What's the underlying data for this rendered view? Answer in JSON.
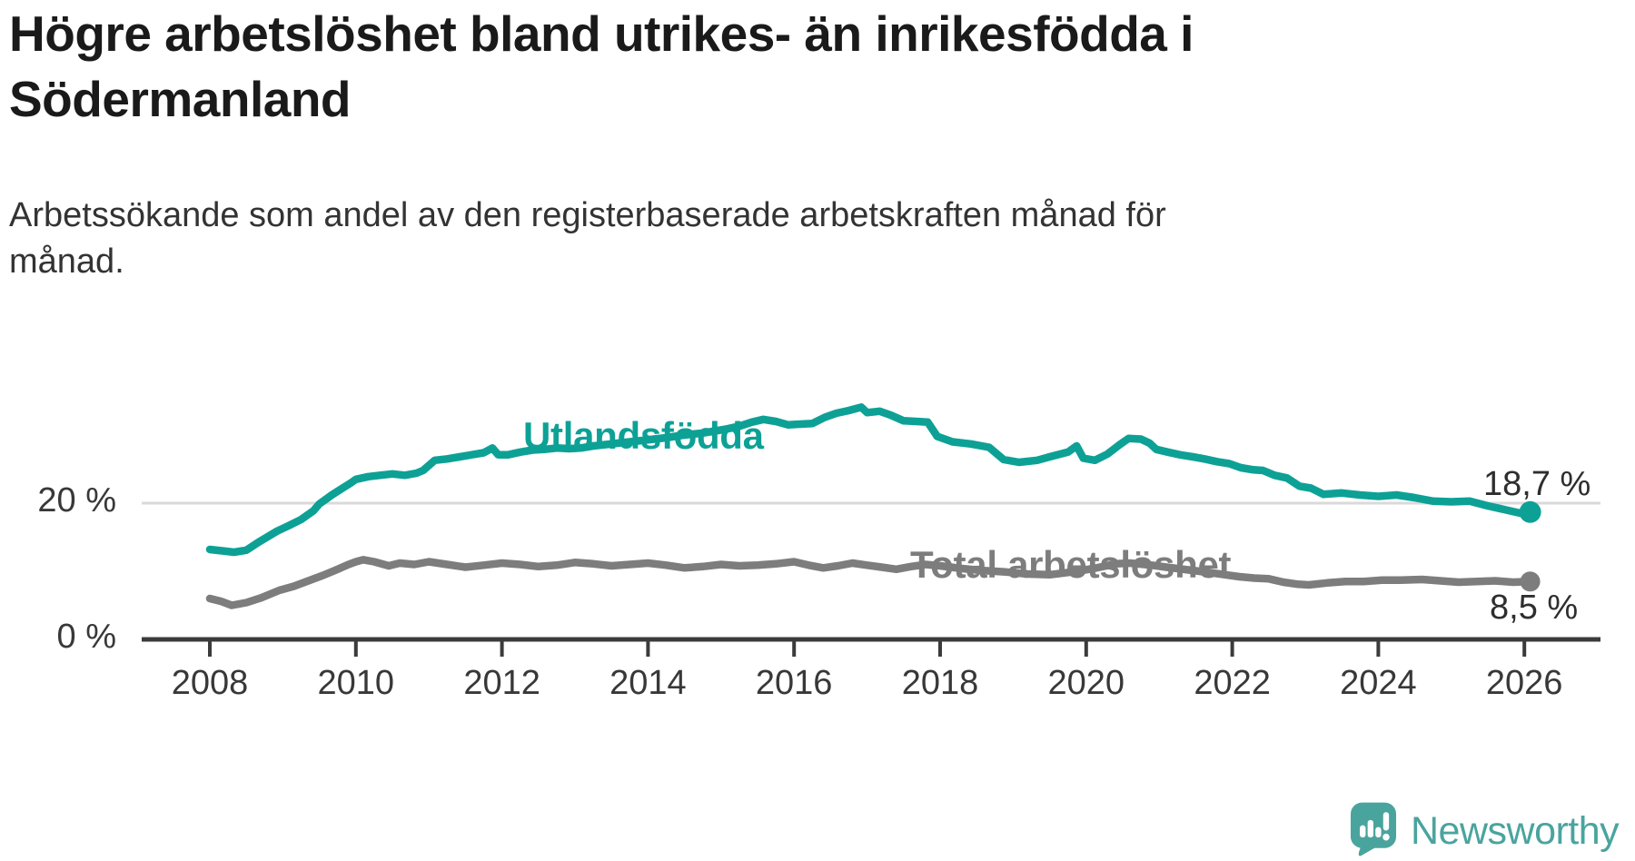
{
  "title_lines": [
    "Högre arbetslöshet bland utrikes- än inrikesfödda i",
    "Södermanland"
  ],
  "subtitle_lines": [
    "Arbetssökande som andel av den registerbaserade arbetskraften månad för",
    "månad."
  ],
  "branding": {
    "name": "Newsworthy",
    "icon": "newsworthy-speech-bubble-chart-icon",
    "color": "#4aa49e"
  },
  "chart_data": {
    "type": "line",
    "title": "Högre arbetslöshet bland utrikes- än inrikesfödda i Södermanland",
    "subtitle": "Arbetssökande som andel av den registerbaserade arbetskraften månad för månad.",
    "x_unit": "year",
    "xlim": [
      2008,
      2026.2
    ],
    "ylim": [
      0,
      40
    ],
    "grid": "horizontal-20-only",
    "legend": "inline-labels",
    "x_ticks": [
      "2008",
      "2010",
      "2012",
      "2014",
      "2016",
      "2018",
      "2020",
      "2022",
      "2024",
      "2026"
    ],
    "y_ticks": [
      {
        "value": 20,
        "label": "20 %"
      },
      {
        "value": 0,
        "label": "0 %"
      }
    ],
    "series": [
      {
        "name": "Utlandsfödda",
        "color": "#0da196",
        "end_label": "18,7 %",
        "end_value": 18.7,
        "points": [
          [
            2008.0,
            13.2
          ],
          [
            2008.17,
            13.0
          ],
          [
            2008.33,
            12.8
          ],
          [
            2008.5,
            13.1
          ],
          [
            2008.67,
            14.3
          ],
          [
            2008.92,
            15.9
          ],
          [
            2009.08,
            16.7
          ],
          [
            2009.25,
            17.6
          ],
          [
            2009.42,
            18.9
          ],
          [
            2009.5,
            19.9
          ],
          [
            2009.67,
            21.2
          ],
          [
            2009.83,
            22.3
          ],
          [
            2009.92,
            22.9
          ],
          [
            2010.0,
            23.5
          ],
          [
            2010.17,
            23.9
          ],
          [
            2010.33,
            24.1
          ],
          [
            2010.5,
            24.3
          ],
          [
            2010.67,
            24.1
          ],
          [
            2010.83,
            24.4
          ],
          [
            2010.92,
            24.8
          ],
          [
            2011.08,
            26.3
          ],
          [
            2011.25,
            26.5
          ],
          [
            2011.42,
            26.8
          ],
          [
            2011.58,
            27.1
          ],
          [
            2011.75,
            27.4
          ],
          [
            2011.87,
            28.1
          ],
          [
            2011.95,
            27.1
          ],
          [
            2012.08,
            27.1
          ],
          [
            2012.25,
            27.5
          ],
          [
            2012.42,
            27.8
          ],
          [
            2012.58,
            27.9
          ],
          [
            2012.75,
            28.1
          ],
          [
            2012.92,
            28.0
          ],
          [
            2013.08,
            28.1
          ],
          [
            2013.25,
            28.4
          ],
          [
            2013.42,
            28.6
          ],
          [
            2013.58,
            28.8
          ],
          [
            2013.75,
            29.0
          ],
          [
            2013.92,
            29.2
          ],
          [
            2014.08,
            29.4
          ],
          [
            2014.25,
            29.6
          ],
          [
            2014.42,
            29.9
          ],
          [
            2014.58,
            30.1
          ],
          [
            2014.75,
            30.3
          ],
          [
            2014.92,
            30.6
          ],
          [
            2015.08,
            30.9
          ],
          [
            2015.25,
            31.3
          ],
          [
            2015.42,
            31.9
          ],
          [
            2015.58,
            32.3
          ],
          [
            2015.75,
            32.0
          ],
          [
            2015.92,
            31.5
          ],
          [
            2016.08,
            31.6
          ],
          [
            2016.25,
            31.7
          ],
          [
            2016.42,
            32.6
          ],
          [
            2016.58,
            33.2
          ],
          [
            2016.75,
            33.6
          ],
          [
            2016.92,
            34.1
          ],
          [
            2017.0,
            33.3
          ],
          [
            2017.17,
            33.5
          ],
          [
            2017.33,
            32.9
          ],
          [
            2017.5,
            32.1
          ],
          [
            2017.67,
            32.0
          ],
          [
            2017.83,
            31.9
          ],
          [
            2017.96,
            29.8
          ],
          [
            2018.17,
            29.0
          ],
          [
            2018.42,
            28.7
          ],
          [
            2018.67,
            28.2
          ],
          [
            2018.87,
            26.4
          ],
          [
            2019.08,
            26.0
          ],
          [
            2019.33,
            26.3
          ],
          [
            2019.5,
            26.8
          ],
          [
            2019.75,
            27.5
          ],
          [
            2019.87,
            28.4
          ],
          [
            2019.96,
            26.6
          ],
          [
            2020.12,
            26.3
          ],
          [
            2020.29,
            27.2
          ],
          [
            2020.46,
            28.6
          ],
          [
            2020.58,
            29.5
          ],
          [
            2020.75,
            29.4
          ],
          [
            2020.87,
            28.8
          ],
          [
            2020.96,
            27.9
          ],
          [
            2021.12,
            27.5
          ],
          [
            2021.29,
            27.1
          ],
          [
            2021.46,
            26.8
          ],
          [
            2021.62,
            26.5
          ],
          [
            2021.79,
            26.1
          ],
          [
            2021.96,
            25.8
          ],
          [
            2022.12,
            25.2
          ],
          [
            2022.29,
            24.9
          ],
          [
            2022.42,
            24.8
          ],
          [
            2022.58,
            24.1
          ],
          [
            2022.75,
            23.7
          ],
          [
            2022.92,
            22.5
          ],
          [
            2023.08,
            22.2
          ],
          [
            2023.25,
            21.3
          ],
          [
            2023.5,
            21.5
          ],
          [
            2023.75,
            21.2
          ],
          [
            2024.0,
            21.0
          ],
          [
            2024.25,
            21.2
          ],
          [
            2024.5,
            20.8
          ],
          [
            2024.75,
            20.3
          ],
          [
            2025.0,
            20.2
          ],
          [
            2025.25,
            20.3
          ],
          [
            2025.5,
            19.6
          ],
          [
            2025.75,
            19.0
          ],
          [
            2026.0,
            18.4
          ],
          [
            2026.08,
            18.7
          ]
        ]
      },
      {
        "name": "Total arbetslöshet",
        "color": "#7d7d7d",
        "end_label": "8,5 %",
        "end_value": 8.5,
        "points": [
          [
            2008.0,
            6.0
          ],
          [
            2008.15,
            5.6
          ],
          [
            2008.3,
            5.0
          ],
          [
            2008.5,
            5.4
          ],
          [
            2008.7,
            6.1
          ],
          [
            2008.95,
            7.2
          ],
          [
            2009.15,
            7.8
          ],
          [
            2009.35,
            8.6
          ],
          [
            2009.55,
            9.4
          ],
          [
            2009.75,
            10.3
          ],
          [
            2009.9,
            11.0
          ],
          [
            2010.0,
            11.4
          ],
          [
            2010.1,
            11.7
          ],
          [
            2010.25,
            11.4
          ],
          [
            2010.45,
            10.8
          ],
          [
            2010.6,
            11.2
          ],
          [
            2010.8,
            11.0
          ],
          [
            2011.0,
            11.4
          ],
          [
            2011.25,
            11.0
          ],
          [
            2011.5,
            10.6
          ],
          [
            2011.75,
            10.9
          ],
          [
            2012.0,
            11.2
          ],
          [
            2012.25,
            11.0
          ],
          [
            2012.5,
            10.7
          ],
          [
            2012.75,
            10.9
          ],
          [
            2013.0,
            11.3
          ],
          [
            2013.25,
            11.1
          ],
          [
            2013.5,
            10.8
          ],
          [
            2013.75,
            11.0
          ],
          [
            2014.0,
            11.2
          ],
          [
            2014.25,
            10.9
          ],
          [
            2014.5,
            10.5
          ],
          [
            2014.75,
            10.7
          ],
          [
            2015.0,
            11.0
          ],
          [
            2015.25,
            10.8
          ],
          [
            2015.5,
            10.9
          ],
          [
            2015.75,
            11.1
          ],
          [
            2016.0,
            11.4
          ],
          [
            2016.2,
            10.9
          ],
          [
            2016.4,
            10.5
          ],
          [
            2016.6,
            10.8
          ],
          [
            2016.8,
            11.2
          ],
          [
            2017.0,
            10.9
          ],
          [
            2017.2,
            10.6
          ],
          [
            2017.4,
            10.3
          ],
          [
            2017.6,
            10.7
          ],
          [
            2017.8,
            11.0
          ],
          [
            2018.0,
            10.8
          ],
          [
            2018.3,
            10.4
          ],
          [
            2018.6,
            10.1
          ],
          [
            2018.9,
            9.9
          ],
          [
            2019.2,
            9.6
          ],
          [
            2019.5,
            9.5
          ],
          [
            2019.8,
            9.9
          ],
          [
            2020.1,
            10.4
          ],
          [
            2020.4,
            11.1
          ],
          [
            2020.6,
            11.2
          ],
          [
            2020.9,
            10.9
          ],
          [
            2021.1,
            10.6
          ],
          [
            2021.4,
            10.2
          ],
          [
            2021.7,
            9.8
          ],
          [
            2021.9,
            9.5
          ],
          [
            2022.1,
            9.2
          ],
          [
            2022.3,
            9.0
          ],
          [
            2022.5,
            8.9
          ],
          [
            2022.7,
            8.4
          ],
          [
            2022.9,
            8.1
          ],
          [
            2023.05,
            8.0
          ],
          [
            2023.3,
            8.3
          ],
          [
            2023.55,
            8.5
          ],
          [
            2023.8,
            8.5
          ],
          [
            2024.05,
            8.7
          ],
          [
            2024.3,
            8.7
          ],
          [
            2024.6,
            8.8
          ],
          [
            2024.85,
            8.6
          ],
          [
            2025.1,
            8.4
          ],
          [
            2025.35,
            8.5
          ],
          [
            2025.6,
            8.6
          ],
          [
            2025.85,
            8.4
          ],
          [
            2026.08,
            8.5
          ]
        ]
      }
    ]
  }
}
